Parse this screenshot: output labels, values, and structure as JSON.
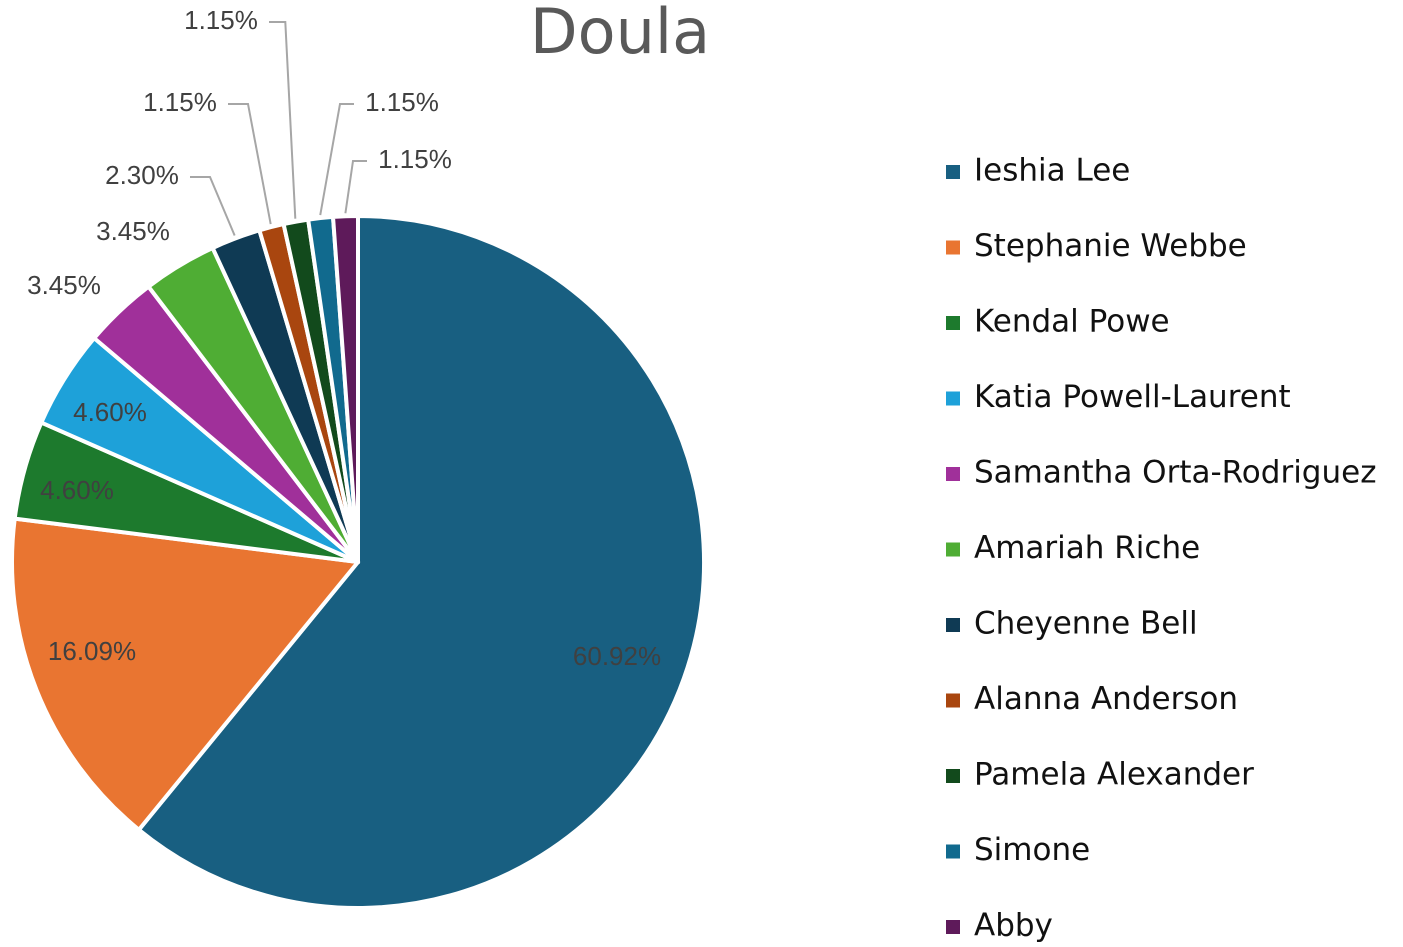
{
  "chart_data": {
    "type": "pie",
    "title": "Doula",
    "categories": [
      "Ieshia Lee",
      "Stephanie Webbe",
      "Kendal Powe",
      "Katia Powell-Laurent",
      "Samantha Orta-Rodriguez",
      "Amariah Riche",
      "Cheyenne Bell",
      "Alanna Anderson",
      "Pamela Alexander",
      "Simone",
      "Abby"
    ],
    "values": [
      60.92,
      16.09,
      4.6,
      4.6,
      3.45,
      3.45,
      2.3,
      1.15,
      1.15,
      1.15,
      1.15
    ],
    "value_labels": [
      "60.92%",
      "16.09%",
      "4.60%",
      "4.60%",
      "3.45%",
      "3.45%",
      "2.30%",
      "1.15%",
      "1.15%",
      "1.15%",
      "1.15%"
    ],
    "colors": [
      "#185f81",
      "#e97531",
      "#1d7a2d",
      "#1ea1d9",
      "#a0309a",
      "#4fad34",
      "#0f3a54",
      "#a9460f",
      "#124a1c",
      "#116a8e",
      "#5e1a5a"
    ],
    "legend": "right"
  }
}
